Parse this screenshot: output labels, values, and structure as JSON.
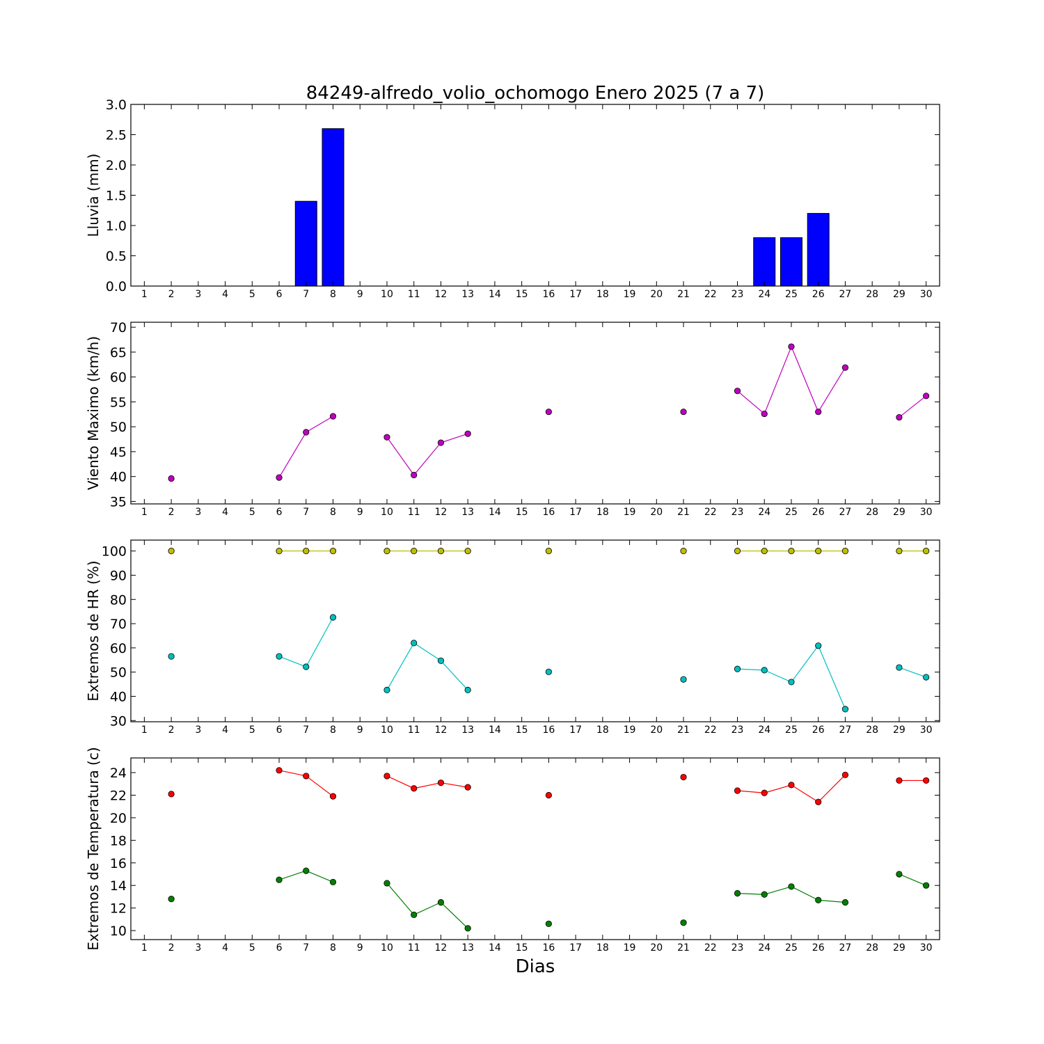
{
  "figure": {
    "title": "84249-alfredo_volio_ochomogo Enero 2025  (7 a 7)",
    "xlabel": "Dias"
  },
  "chart_data": [
    {
      "type": "bar",
      "ylabel": "Lluvia (mm)",
      "ylim": [
        0,
        3.0
      ],
      "yticks": [
        "0.0",
        "0.5",
        "1.0",
        "1.5",
        "2.0",
        "2.5",
        "3.0"
      ],
      "xlim": [
        0.5,
        30.5
      ],
      "categories": [
        1,
        2,
        3,
        4,
        5,
        6,
        7,
        8,
        9,
        10,
        11,
        12,
        13,
        14,
        15,
        16,
        17,
        18,
        19,
        20,
        21,
        22,
        23,
        24,
        25,
        26,
        27,
        28,
        29,
        30
      ],
      "values": [
        null,
        0,
        0,
        0,
        0,
        0,
        1.4,
        2.6,
        0,
        0,
        0,
        0,
        0,
        0,
        0,
        0,
        0,
        0,
        0,
        0,
        0,
        0,
        0,
        0.8,
        0.8,
        1.2,
        0,
        0,
        0,
        0
      ],
      "colors": {
        "bar": "#0000ff"
      },
      "grid": false
    },
    {
      "type": "line",
      "ylabel": "Viento Maximo (km/h)",
      "ylim": [
        34.5,
        71
      ],
      "yticks": [
        "35",
        "40",
        "45",
        "50",
        "55",
        "60",
        "65",
        "70"
      ],
      "xlim": [
        0.5,
        30.5
      ],
      "series": [
        {
          "x": [
            2,
            6,
            7,
            8,
            10,
            11,
            12,
            13,
            16,
            21,
            23,
            24,
            25,
            26,
            27,
            29,
            30
          ],
          "y": [
            39.6,
            39.8,
            48.9,
            52.1,
            47.9,
            40.3,
            46.8,
            48.6,
            53.0,
            53.0,
            57.2,
            52.6,
            66.1,
            53.0,
            61.9,
            51.9,
            56.2
          ],
          "color": "#bf00bf"
        }
      ],
      "grid": false
    },
    {
      "type": "line",
      "ylabel": "Extremos de HR (%)",
      "ylim": [
        29.5,
        104.5
      ],
      "yticks": [
        "30",
        "40",
        "50",
        "60",
        "70",
        "80",
        "90",
        "100"
      ],
      "xlim": [
        0.5,
        30.5
      ],
      "series": [
        {
          "x": [
            2,
            6,
            7,
            8,
            10,
            11,
            12,
            13,
            16,
            21,
            23,
            24,
            25,
            26,
            27,
            29,
            30
          ],
          "y": [
            100,
            100,
            100,
            100,
            100,
            100,
            100,
            100,
            100,
            100,
            100,
            100,
            100,
            100,
            100,
            100,
            100
          ],
          "color": "#bfbf00"
        },
        {
          "x": [
            2,
            6,
            7,
            8,
            10,
            11,
            12,
            13,
            16,
            21,
            23,
            24,
            25,
            26,
            27,
            29,
            30
          ],
          "y": [
            56.5,
            56.5,
            52.2,
            72.6,
            42.6,
            62.0,
            54.7,
            42.6,
            50.1,
            47.0,
            51.3,
            50.8,
            45.9,
            60.9,
            34.7,
            51.9,
            47.9
          ],
          "color": "#00bfbf"
        }
      ],
      "grid": false
    },
    {
      "type": "line",
      "ylabel": "Extremos de Temperatura (c)",
      "ylim": [
        9.2,
        25.3
      ],
      "yticks": [
        "10",
        "12",
        "14",
        "16",
        "18",
        "20",
        "22",
        "24"
      ],
      "xlim": [
        0.5,
        30.5
      ],
      "series": [
        {
          "x": [
            2,
            6,
            7,
            8,
            10,
            11,
            12,
            13,
            16,
            21,
            23,
            24,
            25,
            26,
            27,
            29,
            30
          ],
          "y": [
            22.1,
            24.2,
            23.7,
            21.9,
            23.7,
            22.6,
            23.1,
            22.7,
            22.0,
            23.6,
            22.4,
            22.2,
            22.9,
            21.4,
            23.8,
            23.3,
            23.3
          ],
          "color": "#ff0000"
        },
        {
          "x": [
            2,
            6,
            7,
            8,
            10,
            11,
            12,
            13,
            16,
            21,
            23,
            24,
            25,
            26,
            27,
            29,
            30
          ],
          "y": [
            12.8,
            14.5,
            15.3,
            14.3,
            14.2,
            11.4,
            12.5,
            10.2,
            10.6,
            10.7,
            13.3,
            13.2,
            13.9,
            12.7,
            12.5,
            15.0,
            14.0
          ],
          "color": "#008000"
        }
      ],
      "grid": false
    }
  ]
}
